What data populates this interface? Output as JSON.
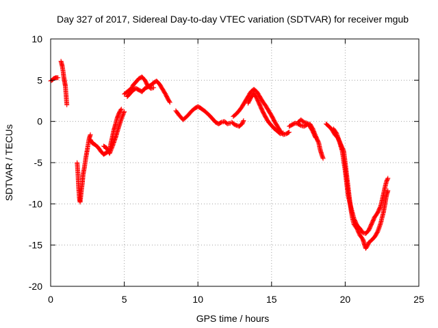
{
  "chart_data": {
    "type": "scatter",
    "title": "Day 327 of 2017, Sidereal Day-to-day VTEC variation (SDTVAR) for receiver mgub",
    "xlabel": "GPS time / hours",
    "ylabel": "SDTVAR / TECUs",
    "xlim": [
      0,
      25
    ],
    "ylim": [
      -20,
      10
    ],
    "x_ticks": [
      0,
      5,
      10,
      15,
      20,
      25
    ],
    "y_ticks": [
      10,
      5,
      0,
      -5,
      -10,
      -15,
      -20
    ],
    "x_tick_labels": [
      "0",
      "5",
      "10",
      "15",
      "20",
      "25"
    ],
    "y_tick_labels": [
      "10",
      "5",
      "0",
      "-5",
      "-10",
      "-15",
      "-20"
    ],
    "grid": true,
    "marker": "plus",
    "color": "#ff0000",
    "series": [
      {
        "segments": [
          [
            [
              0.0,
              4.9
            ],
            [
              0.1,
              5.0
            ],
            [
              0.2,
              5.2
            ],
            [
              0.35,
              5.3
            ],
            [
              0.5,
              5.3
            ]
          ],
          [
            [
              0.7,
              7.3
            ],
            [
              0.75,
              7.0
            ],
            [
              0.8,
              6.6
            ],
            [
              0.85,
              6.0
            ],
            [
              0.9,
              5.3
            ],
            [
              0.95,
              4.8
            ],
            [
              1.0,
              4.3
            ],
            [
              1.05,
              3.2
            ],
            [
              1.1,
              2.0
            ]
          ],
          [
            [
              1.8,
              -5.0
            ],
            [
              1.85,
              -6.2
            ],
            [
              1.9,
              -8.0
            ],
            [
              1.95,
              -9.3
            ],
            [
              2.0,
              -9.8
            ],
            [
              2.05,
              -9.0
            ],
            [
              2.1,
              -8.2
            ],
            [
              2.15,
              -7.5
            ],
            [
              2.2,
              -6.5
            ],
            [
              2.3,
              -5.5
            ],
            [
              2.4,
              -4.3
            ],
            [
              2.5,
              -3.3
            ],
            [
              2.6,
              -2.2
            ],
            [
              2.7,
              -1.6
            ]
          ],
          [
            [
              2.7,
              -2.2
            ],
            [
              2.8,
              -2.6
            ],
            [
              3.0,
              -2.8
            ],
            [
              3.2,
              -3.1
            ],
            [
              3.4,
              -3.6
            ],
            [
              3.6,
              -4.0
            ],
            [
              3.8,
              -3.8
            ],
            [
              4.0,
              -3.5
            ],
            [
              4.1,
              -2.6
            ],
            [
              4.2,
              -1.8
            ],
            [
              4.3,
              -1.0
            ],
            [
              4.4,
              -0.4
            ],
            [
              4.5,
              0.3
            ],
            [
              4.6,
              0.8
            ],
            [
              4.7,
              1.2
            ],
            [
              4.8,
              1.5
            ]
          ],
          [
            [
              3.6,
              -3.0
            ],
            [
              3.8,
              -3.2
            ],
            [
              4.0,
              -3.9
            ],
            [
              4.2,
              -3.0
            ],
            [
              4.4,
              -2.0
            ],
            [
              4.6,
              -0.8
            ],
            [
              4.8,
              0.3
            ],
            [
              5.0,
              1.2
            ]
          ],
          [
            [
              5.0,
              3.3
            ],
            [
              5.2,
              3.6
            ],
            [
              5.4,
              3.9
            ],
            [
              5.5,
              4.0
            ],
            [
              5.6,
              4.4
            ],
            [
              5.8,
              4.8
            ],
            [
              6.0,
              5.2
            ],
            [
              6.2,
              5.4
            ],
            [
              6.4,
              5.0
            ],
            [
              6.6,
              4.3
            ],
            [
              6.8,
              4.0
            ],
            [
              7.0,
              4.1
            ]
          ],
          [
            [
              5.2,
              3.0
            ],
            [
              5.4,
              3.4
            ],
            [
              5.6,
              3.8
            ],
            [
              5.8,
              4.0
            ],
            [
              6.0,
              3.8
            ],
            [
              6.2,
              3.6
            ],
            [
              6.4,
              4.0
            ],
            [
              6.6,
              4.2
            ],
            [
              6.8,
              4.4
            ],
            [
              7.0,
              4.7
            ],
            [
              7.2,
              4.9
            ],
            [
              7.4,
              4.5
            ],
            [
              7.6,
              3.9
            ],
            [
              7.8,
              3.3
            ],
            [
              8.0,
              2.6
            ],
            [
              8.1,
              2.3
            ]
          ],
          [
            [
              8.5,
              1.3
            ],
            [
              8.7,
              0.8
            ],
            [
              9.0,
              0.2
            ],
            [
              9.3,
              0.7
            ],
            [
              9.6,
              1.3
            ],
            [
              9.8,
              1.6
            ],
            [
              10.0,
              1.8
            ],
            [
              10.2,
              1.6
            ],
            [
              10.5,
              1.2
            ],
            [
              10.8,
              0.7
            ],
            [
              11.0,
              0.3
            ],
            [
              11.2,
              -0.1
            ],
            [
              11.4,
              -0.3
            ],
            [
              11.6,
              -0.1
            ],
            [
              11.8,
              0.0
            ],
            [
              12.0,
              -0.3
            ],
            [
              12.2,
              -0.2
            ]
          ],
          [
            [
              12.3,
              -0.1
            ],
            [
              12.5,
              -0.4
            ],
            [
              12.8,
              -0.6
            ],
            [
              13.0,
              -0.3
            ],
            [
              13.1,
              0.1
            ]
          ],
          [
            [
              12.4,
              0.6
            ],
            [
              12.6,
              0.9
            ],
            [
              12.8,
              1.3
            ],
            [
              13.0,
              1.8
            ],
            [
              13.2,
              2.4
            ],
            [
              13.4,
              3.0
            ],
            [
              13.6,
              3.6
            ],
            [
              13.8,
              3.9
            ],
            [
              14.0,
              3.6
            ],
            [
              14.2,
              3.0
            ],
            [
              14.4,
              2.4
            ],
            [
              14.6,
              1.9
            ],
            [
              14.8,
              1.3
            ],
            [
              15.0,
              0.7
            ],
            [
              15.2,
              0.0
            ],
            [
              15.4,
              -0.6
            ],
            [
              15.6,
              -1.2
            ],
            [
              15.8,
              -1.6
            ],
            [
              16.0,
              -1.5
            ],
            [
              16.2,
              -1.3
            ]
          ],
          [
            [
              13.4,
              2.2
            ],
            [
              13.6,
              2.9
            ],
            [
              13.8,
              3.4
            ],
            [
              14.0,
              2.8
            ],
            [
              14.2,
              2.0
            ],
            [
              14.4,
              1.2
            ],
            [
              14.6,
              0.5
            ],
            [
              14.8,
              -0.1
            ],
            [
              15.0,
              -0.5
            ],
            [
              15.2,
              -0.9
            ],
            [
              15.4,
              -1.2
            ],
            [
              15.6,
              -1.5
            ],
            [
              15.8,
              -1.4
            ]
          ],
          [
            [
              16.2,
              -0.6
            ],
            [
              16.4,
              -0.4
            ],
            [
              16.6,
              -0.2
            ],
            [
              16.8,
              -0.3
            ],
            [
              17.0,
              -0.5
            ],
            [
              17.2,
              -0.6
            ],
            [
              17.4,
              -0.4
            ],
            [
              17.6,
              -0.3
            ],
            [
              17.8,
              -0.9
            ],
            [
              18.0,
              -1.8
            ],
            [
              18.2,
              -2.6
            ],
            [
              18.3,
              -3.4
            ],
            [
              18.4,
              -4.0
            ],
            [
              18.5,
              -4.5
            ]
          ],
          [
            [
              16.8,
              -0.1
            ],
            [
              17.0,
              0.2
            ],
            [
              17.2,
              -0.1
            ],
            [
              17.4,
              -0.2
            ],
            [
              17.6,
              -0.6
            ],
            [
              17.8,
              -1.2
            ],
            [
              18.0,
              -2.0
            ]
          ],
          [
            [
              18.7,
              -0.3
            ],
            [
              18.9,
              -0.6
            ],
            [
              19.1,
              -1.0
            ],
            [
              19.3,
              -1.6
            ],
            [
              19.5,
              -2.0
            ],
            [
              19.7,
              -2.8
            ],
            [
              19.9,
              -3.6
            ],
            [
              20.0,
              -5.0
            ],
            [
              20.1,
              -6.5
            ],
            [
              20.2,
              -8.0
            ],
            [
              20.3,
              -9.5
            ],
            [
              20.4,
              -10.8
            ],
            [
              20.5,
              -11.8
            ],
            [
              20.6,
              -12.5
            ],
            [
              20.8,
              -13.0
            ],
            [
              21.0,
              -13.8
            ],
            [
              21.2,
              -14.3
            ],
            [
              21.3,
              -14.9
            ],
            [
              21.4,
              -15.4
            ],
            [
              21.5,
              -15.1
            ],
            [
              21.6,
              -14.7
            ],
            [
              21.8,
              -14.4
            ],
            [
              22.0,
              -14.0
            ],
            [
              22.2,
              -13.4
            ],
            [
              22.4,
              -12.4
            ],
            [
              22.6,
              -11.0
            ],
            [
              22.7,
              -10.0
            ],
            [
              22.8,
              -9.0
            ],
            [
              22.9,
              -8.4
            ]
          ],
          [
            [
              19.2,
              -0.9
            ],
            [
              19.4,
              -1.4
            ],
            [
              19.6,
              -2.4
            ],
            [
              19.8,
              -3.6
            ],
            [
              19.9,
              -4.8
            ],
            [
              20.0,
              -6.0
            ],
            [
              20.1,
              -7.5
            ],
            [
              20.2,
              -9.0
            ],
            [
              20.4,
              -10.5
            ],
            [
              20.6,
              -11.8
            ],
            [
              20.8,
              -12.6
            ],
            [
              21.0,
              -13.0
            ],
            [
              21.2,
              -13.5
            ],
            [
              21.4,
              -13.6
            ],
            [
              21.6,
              -13.2
            ],
            [
              21.8,
              -12.4
            ],
            [
              22.0,
              -11.6
            ],
            [
              22.2,
              -11.1
            ],
            [
              22.4,
              -10.3
            ],
            [
              22.5,
              -9.6
            ],
            [
              22.6,
              -8.8
            ],
            [
              22.7,
              -8.0
            ],
            [
              22.8,
              -7.3
            ],
            [
              22.9,
              -6.9
            ]
          ]
        ]
      }
    ]
  }
}
